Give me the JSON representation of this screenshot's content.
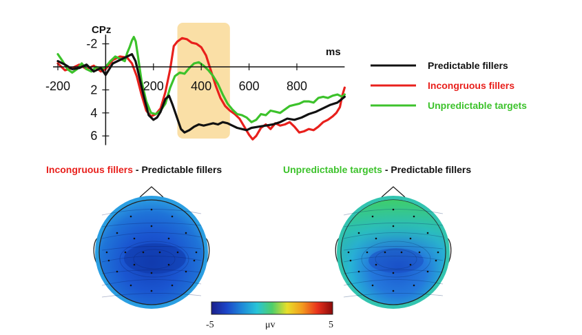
{
  "chart_data": [
    {
      "type": "line",
      "channel_label": "CPz",
      "x_unit_label": "ms",
      "xlim": [
        -220,
        1000
      ],
      "ylim": [
        -2.8,
        6.8
      ],
      "y_inverted": true,
      "x_ticks": [
        -200,
        200,
        400,
        600,
        800
      ],
      "y_ticks": [
        -2,
        2,
        4,
        6
      ],
      "highlight_window": [
        300,
        520
      ],
      "highlight_color": "#f6c96a",
      "series": [
        {
          "name": "Predictable fillers",
          "color": "#111111",
          "points": [
            [
              -200,
              -0.5
            ],
            [
              -170,
              -0.2
            ],
            [
              -140,
              0.2
            ],
            [
              -110,
              0.1
            ],
            [
              -80,
              -0.2
            ],
            [
              -50,
              0.4
            ],
            [
              -20,
              0.1
            ],
            [
              0,
              0.7
            ],
            [
              30,
              -0.3
            ],
            [
              60,
              -0.6
            ],
            [
              90,
              -0.9
            ],
            [
              110,
              -1.1
            ],
            [
              125,
              -0.5
            ],
            [
              140,
              0.8
            ],
            [
              160,
              2.6
            ],
            [
              180,
              4.2
            ],
            [
              200,
              4.6
            ],
            [
              215,
              4.4
            ],
            [
              230,
              3.9
            ],
            [
              250,
              2.8
            ],
            [
              265,
              2.5
            ],
            [
              280,
              3.3
            ],
            [
              300,
              4.5
            ],
            [
              315,
              5.4
            ],
            [
              330,
              5.7
            ],
            [
              350,
              5.5
            ],
            [
              370,
              5.2
            ],
            [
              390,
              5.0
            ],
            [
              410,
              5.1
            ],
            [
              430,
              5.0
            ],
            [
              450,
              4.9
            ],
            [
              470,
              5.0
            ],
            [
              490,
              4.8
            ],
            [
              510,
              4.9
            ],
            [
              530,
              5.1
            ],
            [
              550,
              5.3
            ],
            [
              570,
              5.4
            ],
            [
              590,
              5.5
            ],
            [
              610,
              5.3
            ],
            [
              640,
              5.2
            ],
            [
              670,
              5.1
            ],
            [
              700,
              5.0
            ],
            [
              730,
              4.8
            ],
            [
              760,
              4.5
            ],
            [
              790,
              4.6
            ],
            [
              820,
              4.4
            ],
            [
              850,
              4.1
            ],
            [
              880,
              3.9
            ],
            [
              910,
              3.6
            ],
            [
              940,
              3.3
            ],
            [
              970,
              3.1
            ],
            [
              1000,
              2.6
            ]
          ]
        },
        {
          "name": "Incongruous fillers",
          "color": "#e8201c",
          "points": [
            [
              -200,
              -0.3
            ],
            [
              -170,
              0.3
            ],
            [
              -140,
              0.1
            ],
            [
              -110,
              -0.2
            ],
            [
              -80,
              0.2
            ],
            [
              -50,
              -0.1
            ],
            [
              -20,
              0.4
            ],
            [
              0,
              0.2
            ],
            [
              30,
              -0.6
            ],
            [
              60,
              -0.9
            ],
            [
              90,
              -0.8
            ],
            [
              110,
              -0.3
            ],
            [
              130,
              0.8
            ],
            [
              150,
              2.4
            ],
            [
              170,
              3.8
            ],
            [
              190,
              4.3
            ],
            [
              210,
              4.1
            ],
            [
              230,
              3.6
            ],
            [
              250,
              2.2
            ],
            [
              270,
              0.2
            ],
            [
              285,
              -1.8
            ],
            [
              300,
              -2.2
            ],
            [
              320,
              -2.5
            ],
            [
              340,
              -2.4
            ],
            [
              360,
              -2.1
            ],
            [
              380,
              -2.0
            ],
            [
              400,
              -1.7
            ],
            [
              420,
              -1.0
            ],
            [
              440,
              0.3
            ],
            [
              460,
              1.6
            ],
            [
              480,
              2.7
            ],
            [
              500,
              3.4
            ],
            [
              520,
              3.8
            ],
            [
              540,
              4.1
            ],
            [
              560,
              4.5
            ],
            [
              580,
              5.2
            ],
            [
              600,
              5.9
            ],
            [
              615,
              6.3
            ],
            [
              630,
              6.0
            ],
            [
              650,
              5.3
            ],
            [
              670,
              5.0
            ],
            [
              690,
              5.4
            ],
            [
              710,
              4.9
            ],
            [
              730,
              5.1
            ],
            [
              750,
              5.0
            ],
            [
              770,
              4.8
            ],
            [
              790,
              5.2
            ],
            [
              810,
              5.7
            ],
            [
              830,
              5.6
            ],
            [
              850,
              5.4
            ],
            [
              870,
              5.5
            ],
            [
              890,
              5.2
            ],
            [
              910,
              4.8
            ],
            [
              930,
              4.6
            ],
            [
              950,
              4.3
            ],
            [
              965,
              4.0
            ],
            [
              980,
              3.5
            ],
            [
              990,
              2.5
            ],
            [
              1000,
              1.8
            ]
          ]
        },
        {
          "name": "Unpredictable targets",
          "color": "#3cc22b",
          "points": [
            [
              -200,
              -1.1
            ],
            [
              -180,
              -0.5
            ],
            [
              -160,
              0.2
            ],
            [
              -140,
              0.5
            ],
            [
              -120,
              0.2
            ],
            [
              -100,
              -0.3
            ],
            [
              -80,
              0.2
            ],
            [
              -60,
              0.4
            ],
            [
              -40,
              0.0
            ],
            [
              -20,
              0.2
            ],
            [
              0,
              0.0
            ],
            [
              20,
              -0.5
            ],
            [
              40,
              -0.9
            ],
            [
              60,
              -0.7
            ],
            [
              80,
              -0.5
            ],
            [
              90,
              -1.2
            ],
            [
              100,
              -1.7
            ],
            [
              110,
              -2.3
            ],
            [
              118,
              -2.6
            ],
            [
              126,
              -2.2
            ],
            [
              136,
              -0.8
            ],
            [
              150,
              1.2
            ],
            [
              170,
              3.0
            ],
            [
              190,
              4.0
            ],
            [
              210,
              4.1
            ],
            [
              230,
              3.8
            ],
            [
              250,
              3.2
            ],
            [
              270,
              1.8
            ],
            [
              290,
              0.8
            ],
            [
              310,
              0.5
            ],
            [
              330,
              0.6
            ],
            [
              350,
              0.1
            ],
            [
              370,
              -0.3
            ],
            [
              390,
              -0.4
            ],
            [
              410,
              -0.1
            ],
            [
              430,
              0.3
            ],
            [
              450,
              0.8
            ],
            [
              470,
              1.5
            ],
            [
              490,
              2.4
            ],
            [
              510,
              3.2
            ],
            [
              530,
              3.7
            ],
            [
              550,
              4.1
            ],
            [
              570,
              4.2
            ],
            [
              590,
              4.4
            ],
            [
              610,
              4.8
            ],
            [
              630,
              4.6
            ],
            [
              650,
              4.1
            ],
            [
              670,
              4.2
            ],
            [
              690,
              3.8
            ],
            [
              710,
              3.9
            ],
            [
              730,
              4.0
            ],
            [
              750,
              3.7
            ],
            [
              770,
              3.4
            ],
            [
              790,
              3.3
            ],
            [
              810,
              3.2
            ],
            [
              830,
              3.0
            ],
            [
              850,
              3.0
            ],
            [
              870,
              3.1
            ],
            [
              890,
              2.7
            ],
            [
              910,
              2.6
            ],
            [
              930,
              2.7
            ],
            [
              950,
              2.5
            ],
            [
              970,
              2.4
            ],
            [
              990,
              2.6
            ],
            [
              1000,
              2.4
            ]
          ]
        }
      ]
    },
    {
      "type": "heatmap",
      "subtype": "topographic-map",
      "title_parts": [
        {
          "text": "Incongruous fillers",
          "color": "#e8201c"
        },
        {
          "text": " - ",
          "color": "#111111"
        },
        {
          "text": "Predictable fillers",
          "color": "#111111"
        }
      ]
    },
    {
      "type": "heatmap",
      "subtype": "topographic-map",
      "title_parts": [
        {
          "text": "Unpredictable targets",
          "color": "#3cc22b"
        },
        {
          "text": " - ",
          "color": "#111111"
        },
        {
          "text": "Predictable fillers",
          "color": "#111111"
        }
      ]
    }
  ],
  "colorbar": {
    "min_label": "-5",
    "unit_label": "μv",
    "max_label": "5",
    "stops": [
      "#1b1f8a",
      "#1c45c8",
      "#1e88d8",
      "#27c4d8",
      "#4fce6a",
      "#e8de2a",
      "#f39a1e",
      "#e8311c",
      "#8a0a0a"
    ]
  }
}
